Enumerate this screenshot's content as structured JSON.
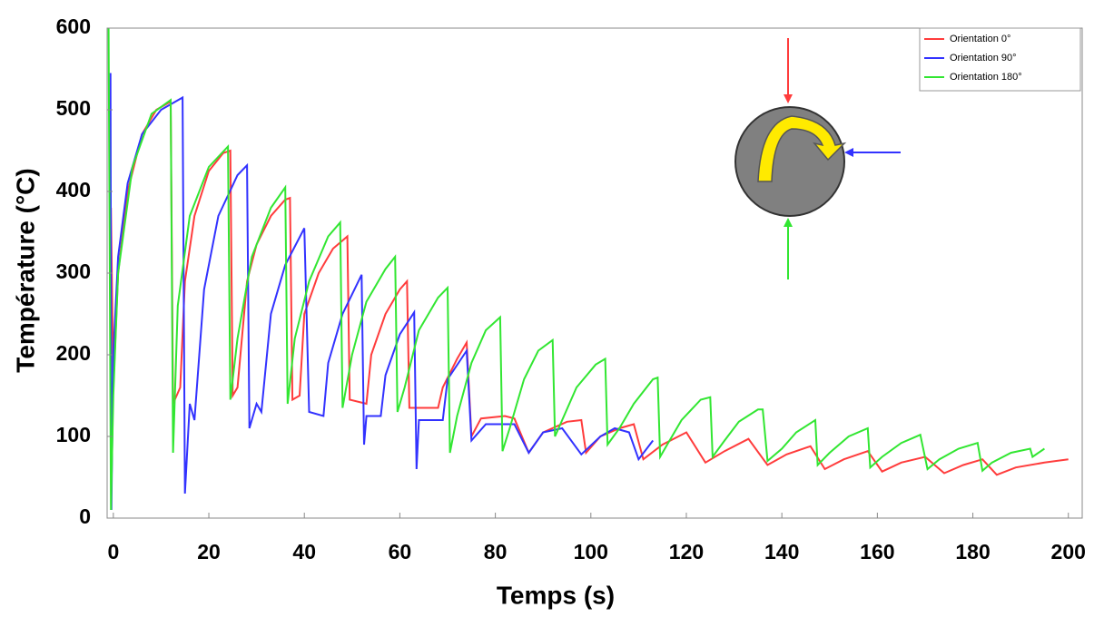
{
  "chart_data": {
    "type": "line",
    "x_label": "Temps (s)",
    "y_label": "Température (°C)",
    "xlim": [
      -1.3,
      202.9
    ],
    "ylim": [
      0,
      600
    ],
    "xticks": [
      0,
      20,
      40,
      60,
      80,
      100,
      120,
      140,
      160,
      180,
      200
    ],
    "yticks": [
      0,
      100,
      200,
      300,
      400,
      500,
      600
    ],
    "legend": "upper right",
    "series": [
      {
        "name": "Orientation 0°",
        "color": "#ff3c3c",
        "x": [
          -0.5,
          0,
          1,
          3,
          6,
          9,
          12,
          12.5,
          14,
          15,
          17,
          20,
          23,
          24.5,
          25,
          26,
          28,
          30,
          33,
          36,
          37,
          37.5,
          39,
          40,
          43,
          46,
          49,
          49.5,
          53,
          54,
          57,
          60,
          61.5,
          62,
          68,
          69,
          72,
          74,
          75,
          77,
          82,
          84,
          87,
          90,
          95,
          98,
          99,
          102,
          106,
          109,
          111,
          115,
          120,
          124,
          128,
          133,
          137,
          141,
          146,
          149,
          153,
          158,
          161,
          165,
          170,
          174,
          178,
          182,
          185,
          189,
          195,
          200
        ],
        "values": [
          380,
          160,
          300,
          400,
          470,
          500,
          510,
          140,
          160,
          290,
          370,
          425,
          447,
          450,
          150,
          160,
          290,
          335,
          370,
          390,
          392,
          145,
          150,
          250,
          300,
          330,
          345,
          145,
          140,
          200,
          250,
          280,
          290,
          135,
          135,
          160,
          195,
          215,
          100,
          122,
          125,
          122,
          80,
          105,
          118,
          120,
          80,
          100,
          110,
          115,
          72,
          90,
          105,
          68,
          82,
          97,
          65,
          78,
          88,
          60,
          72,
          82,
          57,
          68,
          75,
          55,
          65,
          72,
          53,
          62,
          68,
          72
        ]
      },
      {
        "name": "Orientation 90°",
        "color": "#3232ff",
        "x": [
          -0.6,
          -0.4,
          0,
          1,
          3,
          6,
          10,
          14.5,
          15,
          16,
          17,
          19,
          22,
          26,
          28,
          28.5,
          30,
          31,
          33,
          36,
          40,
          41,
          44,
          45,
          48,
          52,
          52.5,
          53,
          56,
          57,
          60,
          63,
          63.5,
          64,
          69,
          70,
          74,
          75,
          78,
          84,
          87,
          90,
          94,
          98,
          102,
          105,
          108,
          110,
          113
        ],
        "values": [
          545,
          10,
          200,
          320,
          410,
          470,
          500,
          515,
          30,
          140,
          120,
          280,
          370,
          420,
          432,
          110,
          140,
          130,
          250,
          310,
          355,
          130,
          125,
          190,
          250,
          298,
          90,
          125,
          125,
          175,
          225,
          252,
          60,
          120,
          120,
          170,
          205,
          95,
          115,
          115,
          80,
          105,
          110,
          78,
          100,
          110,
          105,
          72,
          95
        ]
      },
      {
        "name": "Orientation 180°",
        "color": "#32e632",
        "x": [
          -1,
          -0.5,
          0,
          1,
          4,
          8,
          12,
          12.5,
          13.5,
          16,
          20,
          24,
          24.5,
          26,
          29,
          33,
          36,
          36.5,
          38,
          41,
          45,
          47.5,
          48,
          50,
          53,
          57,
          59,
          59.5,
          61,
          64,
          68,
          70,
          70.5,
          72,
          75,
          78,
          81,
          81.5,
          83,
          86,
          89,
          92,
          92.5,
          94,
          97,
          101,
          103,
          103.5,
          106,
          109,
          113,
          114,
          114.5,
          116,
          119,
          123,
          125,
          125.5,
          128,
          131,
          135,
          136,
          137,
          140,
          143,
          147,
          147.5,
          150,
          154,
          158,
          158.5,
          161,
          165,
          169,
          170.5,
          173,
          177,
          181,
          182,
          184,
          188,
          192,
          192.5,
          195
        ],
        "values": [
          600,
          10,
          150,
          300,
          430,
          495,
          512,
          80,
          260,
          370,
          430,
          455,
          145,
          220,
          320,
          380,
          405,
          140,
          220,
          290,
          345,
          362,
          135,
          200,
          265,
          305,
          320,
          130,
          160,
          230,
          270,
          282,
          80,
          125,
          190,
          230,
          246,
          82,
          110,
          170,
          205,
          218,
          100,
          120,
          160,
          188,
          195,
          90,
          110,
          140,
          170,
          172,
          75,
          90,
          120,
          145,
          148,
          75,
          95,
          118,
          133,
          133,
          70,
          85,
          105,
          120,
          65,
          80,
          100,
          110,
          62,
          75,
          92,
          102,
          60,
          72,
          85,
          92,
          58,
          68,
          80,
          85,
          75,
          85
        ]
      }
    ]
  }
}
